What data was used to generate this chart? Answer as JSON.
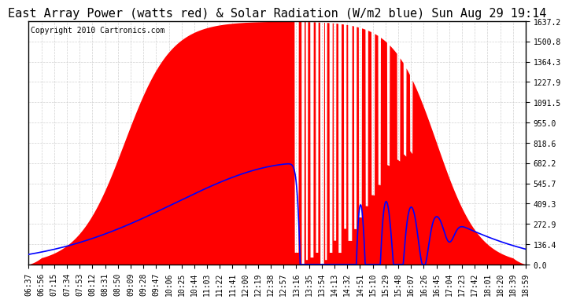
{
  "title": "East Array Power (watts red) & Solar Radiation (W/m2 blue) Sun Aug 29 19:14",
  "copyright": "Copyright 2010 Cartronics.com",
  "y_max": 1637.2,
  "y_min": 0.0,
  "y_ticks": [
    0.0,
    136.4,
    272.9,
    409.3,
    545.7,
    682.2,
    818.6,
    955.0,
    1091.5,
    1227.9,
    1364.3,
    1500.8,
    1637.2
  ],
  "x_labels": [
    "06:37",
    "06:56",
    "07:15",
    "07:34",
    "07:53",
    "08:12",
    "08:31",
    "08:50",
    "09:09",
    "09:28",
    "09:47",
    "10:06",
    "10:25",
    "10:44",
    "11:03",
    "11:22",
    "11:41",
    "12:00",
    "12:19",
    "12:38",
    "12:57",
    "13:16",
    "13:35",
    "13:54",
    "14:13",
    "14:32",
    "14:51",
    "15:10",
    "15:29",
    "15:48",
    "16:07",
    "16:26",
    "16:45",
    "17:04",
    "17:23",
    "17:42",
    "18:01",
    "18:20",
    "18:39",
    "18:59"
  ],
  "bg_color": "#ffffff",
  "plot_bg_color": "#ffffff",
  "red_color": "#ff0000",
  "blue_color": "#0000ff",
  "grid_color": "#cccccc",
  "border_color": "#000000",
  "title_fontsize": 11,
  "copyright_fontsize": 7,
  "tick_fontsize": 7
}
